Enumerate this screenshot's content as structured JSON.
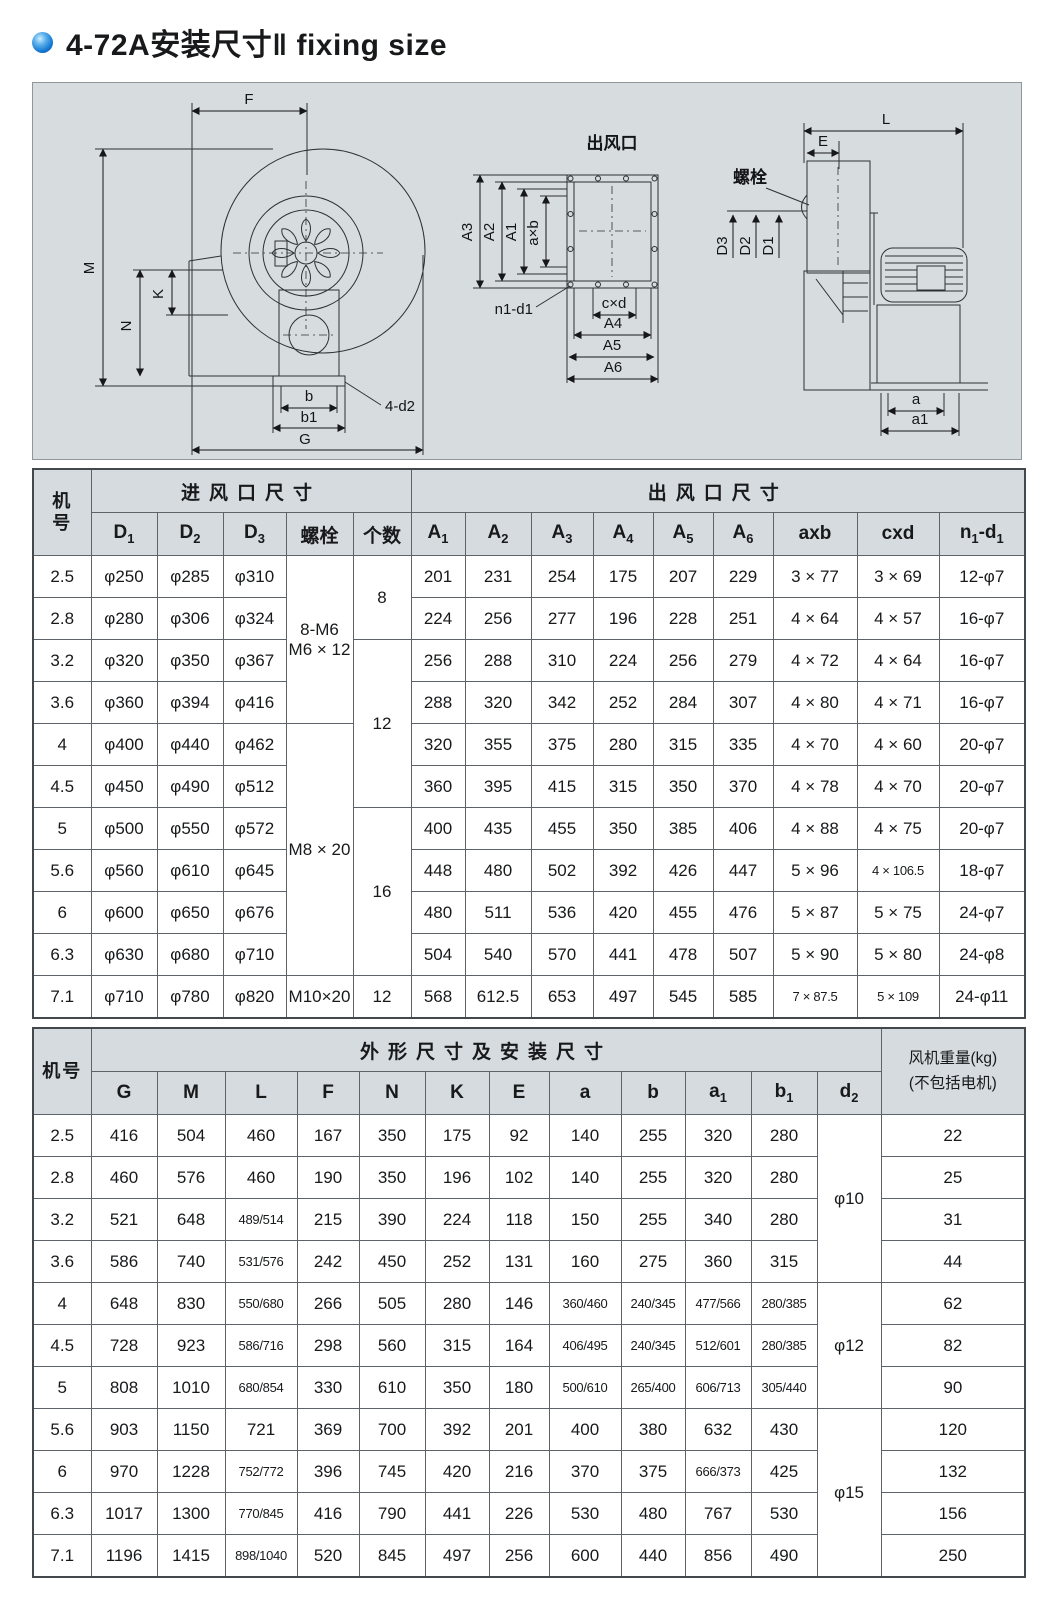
{
  "page": {
    "title": "4-72A安装尺寸‖ fixing size"
  },
  "colors": {
    "accent_bullet": "#1479d2",
    "panel_background": "#d7dcdf",
    "table_header_background": "#d6dbdf",
    "line_color": "#2c3135"
  },
  "diagram": {
    "outlet_title": "出风口",
    "bolt": "螺栓",
    "labels": {
      "F": "F",
      "M": "M",
      "K": "K",
      "N": "N",
      "b": "b",
      "b1": "b1",
      "G": "G",
      "d2": "4-d2",
      "A3": "A3",
      "A2": "A2",
      "A1": "A1",
      "axb": "a×b",
      "n1d1": "n1-d1",
      "cxd": "c×d",
      "A4": "A4",
      "A5": "A5",
      "A6": "A6",
      "L": "L",
      "E": "E",
      "D3": "D3",
      "D2": "D2",
      "D1": "D1",
      "a": "a",
      "a1": "a1"
    }
  },
  "table1": {
    "corner": "机\n号",
    "group_inlet": "进风口尺寸",
    "group_outlet": "出风口尺寸",
    "columns": [
      "D_{1}",
      "D_{2}",
      "D_{3}",
      "螺栓",
      "个数",
      "A_{1}",
      "A_{2}",
      "A_{3}",
      "A_{4}",
      "A_{5}",
      "A_{6}",
      "axb",
      "cxd",
      "n_{1}-d_{1}"
    ],
    "rows": [
      [
        "2.5",
        "φ250",
        "φ285",
        "φ310",
        {
          "t": "8-M6\nM6 × 12",
          "rs": 4
        },
        {
          "t": "8",
          "rs": 2
        },
        "201",
        "231",
        "254",
        "175",
        "207",
        "229",
        "3 × 77",
        "3 × 69",
        "12-φ7"
      ],
      [
        "2.8",
        "φ280",
        "φ306",
        "φ324",
        null,
        null,
        "224",
        "256",
        "277",
        "196",
        "228",
        "251",
        "4 × 64",
        "4 × 57",
        "16-φ7"
      ],
      [
        "3.2",
        "φ320",
        "φ350",
        "φ367",
        null,
        {
          "t": "12",
          "rs": 4
        },
        "256",
        "288",
        "310",
        "224",
        "256",
        "279",
        "4 × 72",
        "4 × 64",
        "16-φ7"
      ],
      [
        "3.6",
        "φ360",
        "φ394",
        "φ416",
        null,
        null,
        "288",
        "320",
        "342",
        "252",
        "284",
        "307",
        "4 × 80",
        "4 × 71",
        "16-φ7"
      ],
      [
        "4",
        "φ400",
        "φ440",
        "φ462",
        {
          "t": "M8 × 20",
          "rs": 6
        },
        null,
        "320",
        "355",
        "375",
        "280",
        "315",
        "335",
        "4 × 70",
        "4 × 60",
        "20-φ7"
      ],
      [
        "4.5",
        "φ450",
        "φ490",
        "φ512",
        null,
        null,
        "360",
        "395",
        "415",
        "315",
        "350",
        "370",
        "4 × 78",
        "4 × 70",
        "20-φ7"
      ],
      [
        "5",
        "φ500",
        "φ550",
        "φ572",
        null,
        {
          "t": "16",
          "rs": 4
        },
        "400",
        "435",
        "455",
        "350",
        "385",
        "406",
        "4 × 88",
        "4 × 75",
        "20-φ7"
      ],
      [
        "5.6",
        "φ560",
        "φ610",
        "φ645",
        null,
        null,
        "448",
        "480",
        "502",
        "392",
        "426",
        "447",
        "5 × 96",
        "4 × 106.5",
        "18-φ7"
      ],
      [
        "6",
        "φ600",
        "φ650",
        "φ676",
        null,
        null,
        "480",
        "511",
        "536",
        "420",
        "455",
        "476",
        "5 × 87",
        "5 × 75",
        "24-φ7"
      ],
      [
        "6.3",
        "φ630",
        "φ680",
        "φ710",
        null,
        null,
        "504",
        "540",
        "570",
        "441",
        "478",
        "507",
        "5 × 90",
        "5 × 80",
        "24-φ8"
      ],
      [
        "7.1",
        "φ710",
        "φ780",
        "φ820",
        "M10×20",
        "12",
        "568",
        "612.5",
        "653",
        "497",
        "545",
        "585",
        "7 × 87.5",
        "5 × 109",
        "24-φ11"
      ]
    ]
  },
  "table2": {
    "corner": "机号",
    "group": "外形尺寸及安装尺寸",
    "weight_header": "风机重量(kg)\n(不包括电机)",
    "columns": [
      "G",
      "M",
      "L",
      "F",
      "N",
      "K",
      "E",
      "a",
      "b",
      "a_{1}",
      "b_{1}",
      "d_{2}"
    ],
    "rows": [
      [
        "2.5",
        "416",
        "504",
        "460",
        "167",
        "350",
        "175",
        "92",
        "140",
        "255",
        "320",
        "280",
        {
          "t": "φ10",
          "rs": 4
        },
        "22"
      ],
      [
        "2.8",
        "460",
        "576",
        "460",
        "190",
        "350",
        "196",
        "102",
        "140",
        "255",
        "320",
        "280",
        null,
        "25"
      ],
      [
        "3.2",
        "521",
        "648",
        "489/514",
        "215",
        "390",
        "224",
        "118",
        "150",
        "255",
        "340",
        "280",
        null,
        "31"
      ],
      [
        "3.6",
        "586",
        "740",
        "531/576",
        "242",
        "450",
        "252",
        "131",
        "160",
        "275",
        "360",
        "315",
        null,
        "44"
      ],
      [
        "4",
        "648",
        "830",
        "550/680",
        "266",
        "505",
        "280",
        "146",
        "360/460",
        "240/345",
        "477/566",
        "280/385",
        {
          "t": "φ12",
          "rs": 3
        },
        "62"
      ],
      [
        "4.5",
        "728",
        "923",
        "586/716",
        "298",
        "560",
        "315",
        "164",
        "406/495",
        "240/345",
        "512/601",
        "280/385",
        null,
        "82"
      ],
      [
        "5",
        "808",
        "1010",
        "680/854",
        "330",
        "610",
        "350",
        "180",
        "500/610",
        "265/400",
        "606/713",
        "305/440",
        null,
        "90"
      ],
      [
        "5.6",
        "903",
        "1150",
        "721",
        "369",
        "700",
        "392",
        "201",
        "400",
        "380",
        "632",
        "430",
        {
          "t": "φ15",
          "rs": 4
        },
        "120"
      ],
      [
        "6",
        "970",
        "1228",
        "752/772",
        "396",
        "745",
        "420",
        "216",
        "370",
        "375",
        "666/373",
        "425",
        null,
        "132"
      ],
      [
        "6.3",
        "1017",
        "1300",
        "770/845",
        "416",
        "790",
        "441",
        "226",
        "530",
        "480",
        "767",
        "530",
        null,
        "156"
      ],
      [
        "7.1",
        "1196",
        "1415",
        "898/1040",
        "520",
        "845",
        "497",
        "256",
        "600",
        "440",
        "856",
        "490",
        null,
        "250"
      ]
    ]
  }
}
